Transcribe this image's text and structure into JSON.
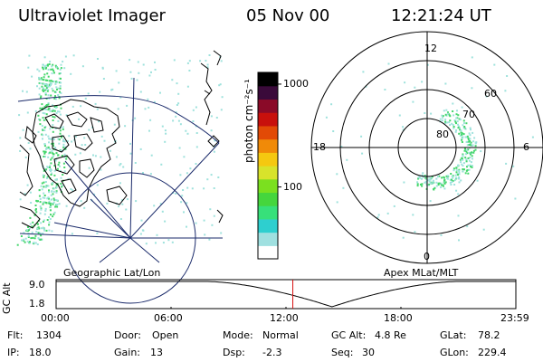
{
  "header": {
    "instrument": "Ultraviolet Imager",
    "date": "05 Nov 00",
    "time": "12:21:24 UT"
  },
  "colorbar": {
    "label": "photon cm⁻²s⁻¹",
    "ticks": [
      {
        "label": "1000",
        "value": 1000
      },
      {
        "label": "100",
        "value": 100
      }
    ],
    "range": [
      20,
      1300
    ],
    "scale": "log",
    "colors": [
      "#ffffff",
      "#9fe0e0",
      "#2ecfcf",
      "#37e07a",
      "#45d63d",
      "#7be01f",
      "#d8e32b",
      "#f5c810",
      "#f08a08",
      "#e24a06",
      "#c8100c",
      "#8a0a28",
      "#3a0a3a",
      "#000000"
    ]
  },
  "left_panel": {
    "caption": "Geographic Lat/Lon",
    "colors": {
      "aurora": "#43d66a",
      "aurora_light": "#9ee2dc",
      "lines": "#1a2a6a"
    }
  },
  "right_panel": {
    "caption": "Apex MLat/MLT",
    "mlt_labels": [
      "12",
      "18",
      "6",
      "0"
    ],
    "mlat_labels": [
      "60",
      "70",
      "80"
    ]
  },
  "timeline": {
    "axis_label": "GC Alt",
    "y_ticks": [
      "9.0",
      "1.8"
    ],
    "x_ticks": [
      "00:00",
      "06:00",
      "12:00",
      "18:00",
      "23:59"
    ],
    "current_time_marker": "12:21:24",
    "marker_color": "#d81010"
  },
  "status": {
    "flt_label": "Flt:",
    "flt": "1304",
    "ip_label": "IP:",
    "ip": "18.0",
    "door_label": "Door:",
    "door": "Open",
    "gain_label": "Gain:",
    "gain": "13",
    "mode_label": "Mode:",
    "mode": "Normal",
    "dsp_label": "Dsp:",
    "dsp": "-2.3",
    "gcalt_label": "GC Alt:",
    "gcalt": "4.8 Re",
    "seq_label": "Seq:",
    "seq": "30",
    "glat_label": "GLat:",
    "glat": "78.2",
    "glon_label": "GLon:",
    "glon": "229.4"
  }
}
